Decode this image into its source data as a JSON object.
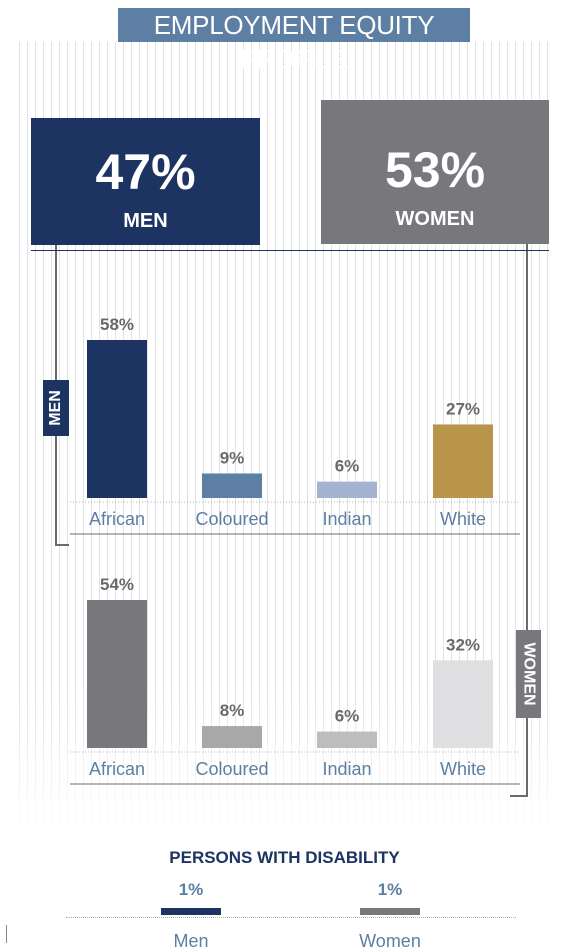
{
  "title": "EMPLOYMENT EQUITY PROFILE",
  "summary": {
    "men": {
      "pct": "47%",
      "label": "MEN"
    },
    "women": {
      "pct": "53%",
      "label": "WOMEN"
    }
  },
  "tags": {
    "men": "MEN",
    "women": "WOMEN"
  },
  "colors": {
    "men_box": "#1d3462",
    "women_box": "#78787c",
    "accent": "#5c7fa3",
    "men_bars": [
      "#1d3462",
      "#5c7fa3",
      "#a3b3cf",
      "#b8954a"
    ],
    "women_bars": [
      "#78787c",
      "#a8a8ab",
      "#bdbdbf",
      "#e0e0e2"
    ]
  },
  "chart_data": [
    {
      "type": "bar",
      "categories": [
        "African",
        "Coloured",
        "Indian",
        "White"
      ],
      "values": [
        58,
        9,
        6,
        27
      ],
      "data_labels": [
        "58%",
        "9%",
        "6%",
        "27%"
      ],
      "ylim": [
        0,
        58
      ]
    },
    {
      "type": "bar",
      "categories": [
        "African",
        "Coloured",
        "Indian",
        "White"
      ],
      "values": [
        54,
        8,
        6,
        32
      ],
      "data_labels": [
        "54%",
        "8%",
        "6%",
        "32%"
      ],
      "ylim": [
        0,
        54
      ]
    }
  ],
  "legend": {
    "title": "PERSONS WITH DISABILITY",
    "items": [
      {
        "label": "Men",
        "value": "1%",
        "color": "#1d3462"
      },
      {
        "label": "Women",
        "value": "1%",
        "color": "#78787c"
      }
    ]
  }
}
